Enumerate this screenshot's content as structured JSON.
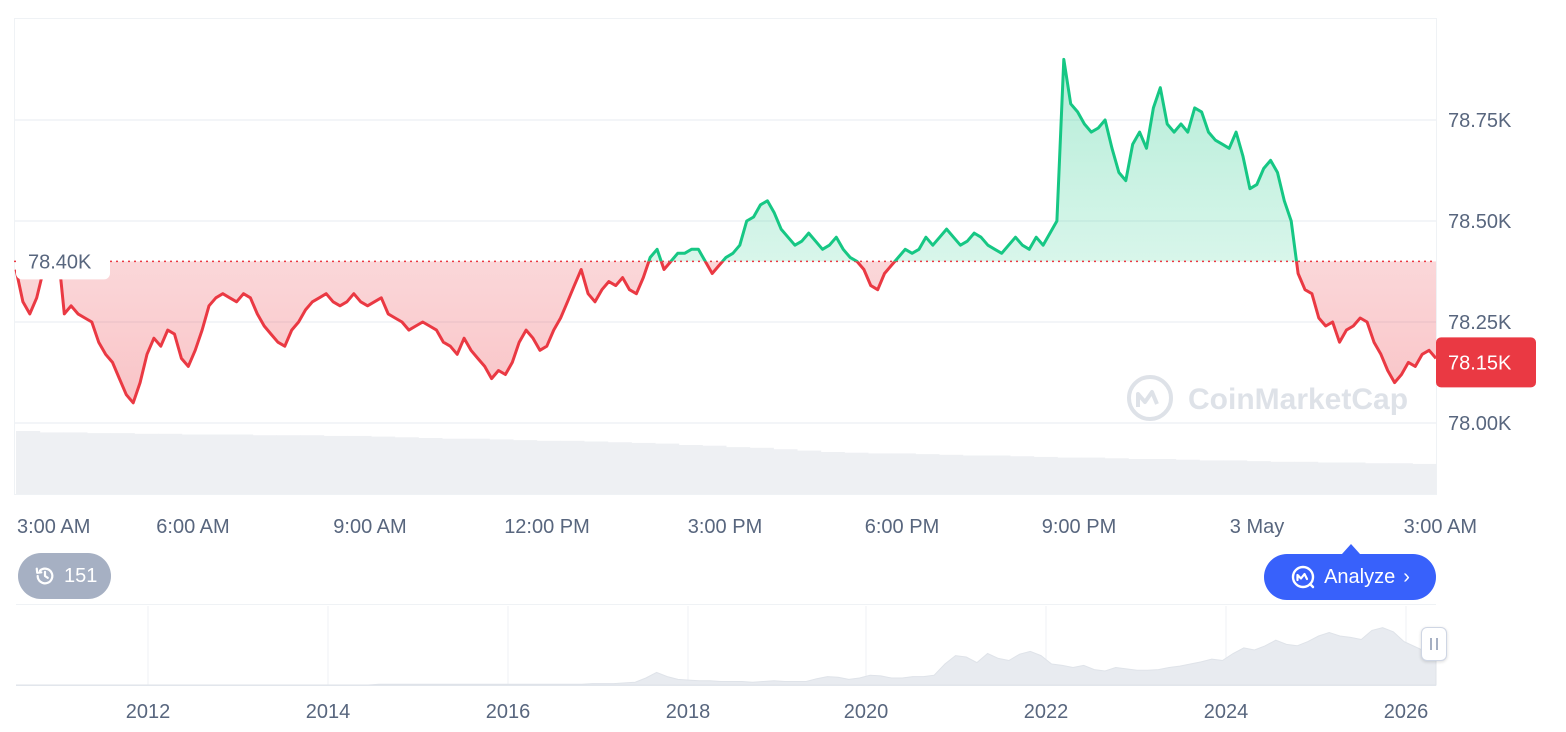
{
  "chart_data": {
    "type": "area",
    "reference_value": "78.40K",
    "current_value": "78.15K",
    "y_ticks": [
      "78.75K",
      "78.50K",
      "78.25K",
      "78.00K"
    ],
    "y_tick_values": [
      78750,
      78500,
      78250,
      78000
    ],
    "x_ticks": [
      "3:00 AM",
      "6:00 AM",
      "9:00 AM",
      "12:00 PM",
      "3:00 PM",
      "6:00 PM",
      "9:00 PM",
      "3 May",
      "3:00 AM"
    ],
    "reference": 78400,
    "current": 78150,
    "grid": true,
    "series": [
      {
        "values": [
          78380,
          78300,
          78270,
          78310,
          78380,
          78440,
          78440,
          78270,
          78290,
          78270,
          78260,
          78250,
          78200,
          78170,
          78150,
          78110,
          78070,
          78050,
          78100,
          78170,
          78210,
          78190,
          78230,
          78220,
          78160,
          78140,
          78180,
          78230,
          78290,
          78310,
          78320,
          78310,
          78300,
          78320,
          78310,
          78270,
          78240,
          78220,
          78200,
          78190,
          78230,
          78250,
          78280,
          78300,
          78310,
          78320,
          78300,
          78290,
          78300,
          78320,
          78300,
          78290,
          78300,
          78310,
          78270,
          78260,
          78250,
          78230,
          78240,
          78250,
          78240,
          78230,
          78200,
          78190,
          78170,
          78210,
          78180,
          78160,
          78140,
          78110,
          78130,
          78120,
          78150,
          78200,
          78230,
          78210,
          78180,
          78190,
          78230,
          78260,
          78300,
          78340,
          78380,
          78320,
          78300,
          78330,
          78350,
          78340,
          78360,
          78330,
          78320,
          78360,
          78410,
          78430,
          78380,
          78400,
          78420,
          78420,
          78430,
          78430,
          78400,
          78370,
          78390,
          78410,
          78420,
          78440,
          78500,
          78510,
          78540,
          78550,
          78520,
          78480,
          78460,
          78440,
          78450,
          78470,
          78450,
          78430,
          78440,
          78460,
          78430,
          78410,
          78400,
          78380,
          78340,
          78330,
          78370,
          78390,
          78410,
          78430,
          78420,
          78430,
          78460,
          78440,
          78460,
          78480,
          78460,
          78440,
          78450,
          78470,
          78460,
          78440,
          78430,
          78420,
          78440,
          78460,
          78440,
          78430,
          78460,
          78440,
          78470,
          78500,
          78900,
          78790,
          78770,
          78740,
          78720,
          78730,
          78750,
          78680,
          78620,
          78600,
          78690,
          78720,
          78680,
          78780,
          78830,
          78740,
          78720,
          78740,
          78720,
          78780,
          78770,
          78720,
          78700,
          78690,
          78680,
          78720,
          78660,
          78580,
          78590,
          78630,
          78650,
          78620,
          78550,
          78500,
          78370,
          78330,
          78320,
          78260,
          78240,
          78250,
          78200,
          78230,
          78240,
          78260,
          78250,
          78200,
          78170,
          78130,
          78100,
          78120,
          78150,
          78140,
          78170,
          78180,
          78160
        ]
      }
    ],
    "volume": [
      0.9,
      0.88,
      0.88,
      0.87,
      0.87,
      0.86,
      0.86,
      0.85,
      0.85,
      0.85,
      0.84,
      0.84,
      0.84,
      0.83,
      0.83,
      0.82,
      0.81,
      0.8,
      0.79,
      0.79,
      0.78,
      0.77,
      0.76,
      0.76,
      0.75,
      0.74,
      0.73,
      0.72,
      0.7,
      0.69,
      0.67,
      0.66,
      0.64,
      0.62,
      0.6,
      0.59,
      0.58,
      0.58,
      0.57,
      0.56,
      0.55,
      0.55,
      0.54,
      0.53,
      0.52,
      0.52,
      0.51,
      0.5,
      0.5,
      0.49,
      0.48,
      0.48,
      0.47,
      0.46,
      0.46,
      0.45,
      0.45,
      0.44,
      0.44,
      0.43
    ],
    "navigator": {
      "x_ticks": [
        "2012",
        "2014",
        "2016",
        "2018",
        "2020",
        "2022",
        "2024",
        "2026"
      ],
      "values": [
        0.0,
        0.0,
        0.0,
        0.0,
        0.0,
        0.0,
        0.0,
        0.0,
        0.0,
        0.0,
        0.0,
        0.0,
        0.0,
        0.0,
        0.0,
        0.0,
        0.0,
        0.0,
        0.0,
        0.0,
        0.0,
        0.0,
        0.0,
        0.0,
        0.0,
        0.0,
        0.0,
        0.0,
        0.0,
        0.0,
        0.0,
        0.0,
        0.0,
        0.0,
        0.01,
        0.01,
        0.01,
        0.01,
        0.01,
        0.01,
        0.01,
        0.01,
        0.01,
        0.01,
        0.01,
        0.01,
        0.01,
        0.01,
        0.01,
        0.01,
        0.01,
        0.01,
        0.01,
        0.01,
        0.02,
        0.02,
        0.02,
        0.03,
        0.04,
        0.1,
        0.18,
        0.12,
        0.08,
        0.07,
        0.06,
        0.06,
        0.05,
        0.05,
        0.05,
        0.04,
        0.05,
        0.06,
        0.05,
        0.05,
        0.05,
        0.09,
        0.12,
        0.11,
        0.08,
        0.1,
        0.14,
        0.13,
        0.1,
        0.1,
        0.12,
        0.12,
        0.14,
        0.3,
        0.42,
        0.4,
        0.32,
        0.45,
        0.38,
        0.35,
        0.44,
        0.48,
        0.42,
        0.3,
        0.28,
        0.25,
        0.28,
        0.22,
        0.2,
        0.25,
        0.23,
        0.21,
        0.21,
        0.22,
        0.25,
        0.27,
        0.3,
        0.33,
        0.37,
        0.35,
        0.45,
        0.53,
        0.5,
        0.56,
        0.64,
        0.58,
        0.56,
        0.62,
        0.7,
        0.75,
        0.7,
        0.68,
        0.65,
        0.78,
        0.82,
        0.76,
        0.62,
        0.55,
        0.48,
        0.5
      ]
    }
  },
  "watermark": {
    "text": "CoinMarketCap"
  },
  "history_badge": {
    "count": "151",
    "icon": "history-icon"
  },
  "analyze_button": {
    "label": "Analyze",
    "icon": "cmc-ai-icon"
  },
  "colors": {
    "up": "#16c784",
    "down": "#ea3943",
    "accent": "#3861fb",
    "grid": "#eff2f5",
    "label": "#58667e"
  }
}
